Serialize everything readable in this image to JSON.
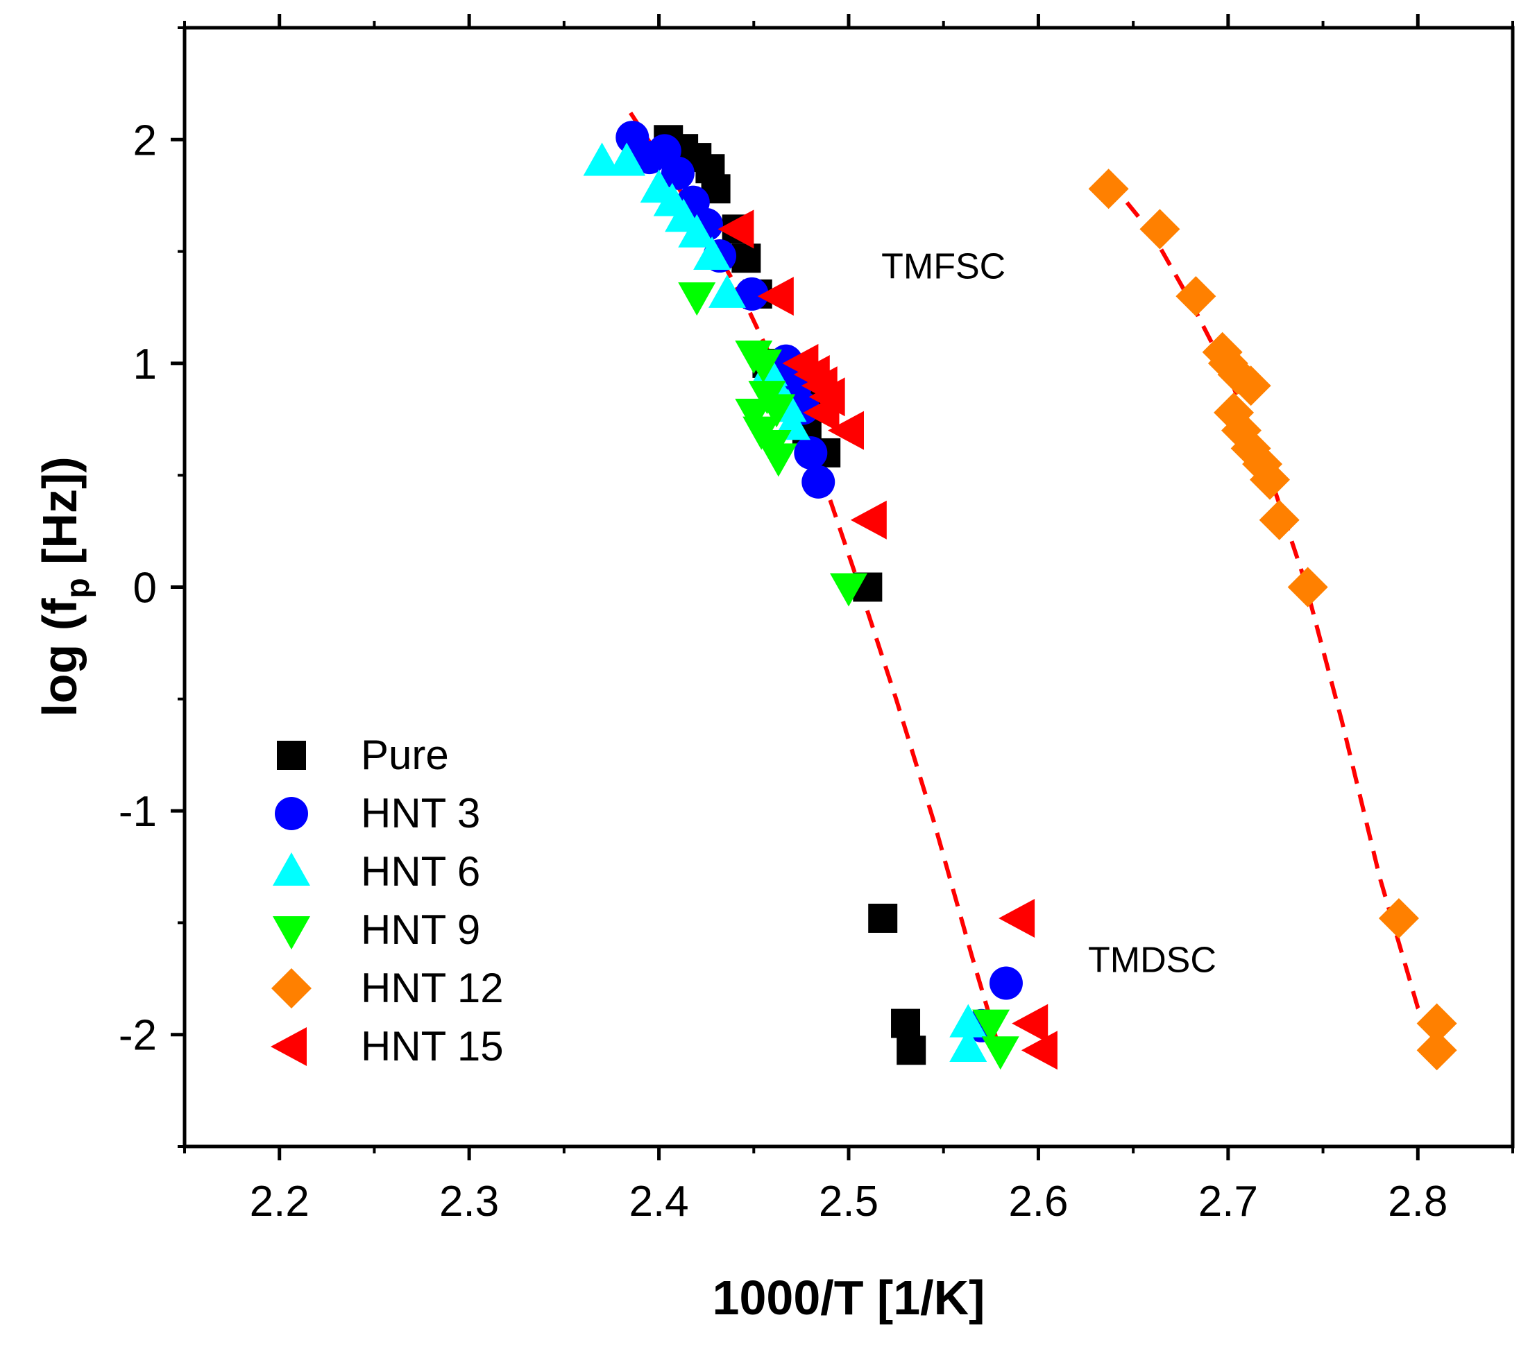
{
  "chart_data": {
    "type": "scatter",
    "title": "",
    "xlabel": "1000/T [1/K]",
    "ylabel_parts": {
      "prefix": "log (f",
      "subscript": "p",
      "suffix": " [Hz])"
    },
    "xlim": [
      2.15,
      2.85
    ],
    "ylim": [
      -2.5,
      2.5
    ],
    "xticks": [
      2.2,
      2.3,
      2.4,
      2.5,
      2.6,
      2.7,
      2.8
    ],
    "xtick_labels": [
      "2.2",
      "2.3",
      "2.4",
      "2.5",
      "2.6",
      "2.7",
      "2.8"
    ],
    "yticks": [
      -2,
      -1,
      0,
      1,
      2
    ],
    "ytick_labels": [
      "-2",
      "-1",
      "0",
      "1",
      "2"
    ],
    "grid": false,
    "legend_position": "bottom-left",
    "annotations": [
      {
        "text": "TMFSC",
        "x": 2.55,
        "y": 1.38
      },
      {
        "text": "TMDSC",
        "x": 2.66,
        "y": -1.72
      }
    ],
    "series": [
      {
        "name": "Pure",
        "marker": "square",
        "color": "#000000",
        "x": [
          2.405,
          2.413,
          2.42,
          2.427,
          2.43,
          2.441,
          2.446,
          2.452,
          2.457,
          2.463,
          2.473,
          2.48,
          2.485,
          2.478,
          2.488,
          2.51,
          2.518,
          2.53,
          2.533
        ],
        "y": [
          2.0,
          1.96,
          1.92,
          1.87,
          1.78,
          1.6,
          1.47,
          1.31,
          1.0,
          0.96,
          0.94,
          0.9,
          0.8,
          0.7,
          0.6,
          0.0,
          -1.48,
          -1.95,
          -2.07
        ]
      },
      {
        "name": "HNT 3",
        "marker": "circle",
        "color": "#0000ff",
        "x": [
          2.386,
          2.395,
          2.403,
          2.41,
          2.418,
          2.425,
          2.432,
          2.449,
          2.467,
          2.472,
          2.476,
          2.48,
          2.484,
          2.583,
          2.57
        ],
        "y": [
          2.01,
          1.92,
          1.95,
          1.85,
          1.72,
          1.62,
          1.48,
          1.31,
          1.01,
          0.9,
          0.8,
          0.6,
          0.47,
          -1.77,
          -1.96
        ]
      },
      {
        "name": "HNT 6",
        "marker": "triangle-up",
        "color": "#00ffff",
        "x": [
          2.37,
          2.383,
          2.4,
          2.407,
          2.413,
          2.42,
          2.428,
          2.436,
          2.458,
          2.462,
          2.468,
          2.47,
          2.563,
          2.563
        ],
        "y": [
          1.9,
          1.9,
          1.78,
          1.72,
          1.65,
          1.58,
          1.48,
          1.31,
          0.96,
          0.88,
          0.8,
          0.72,
          -1.95,
          -2.06
        ]
      },
      {
        "name": "HNT 9",
        "marker": "triangle-down",
        "color": "#00ff00",
        "x": [
          2.42,
          2.45,
          2.455,
          2.457,
          2.462,
          2.45,
          2.454,
          2.46,
          2.463,
          2.5,
          2.575,
          2.58
        ],
        "y": [
          1.3,
          1.04,
          1.0,
          0.86,
          0.8,
          0.78,
          0.7,
          0.64,
          0.58,
          0.0,
          -1.95,
          -2.07
        ]
      },
      {
        "name": "HNT 12",
        "marker": "diamond",
        "color": "#ff8000",
        "x": [
          2.637,
          2.664,
          2.683,
          2.697,
          2.7,
          2.705,
          2.712,
          2.703,
          2.707,
          2.712,
          2.718,
          2.722,
          2.727,
          2.742,
          2.79,
          2.81,
          2.81
        ],
        "y": [
          1.78,
          1.6,
          1.3,
          1.05,
          1.0,
          0.95,
          0.9,
          0.78,
          0.7,
          0.62,
          0.55,
          0.48,
          0.3,
          0.0,
          -1.48,
          -1.95,
          -2.07
        ]
      },
      {
        "name": "HNT 15",
        "marker": "triangle-left",
        "color": "#ff0000",
        "x": [
          2.442,
          2.463,
          2.476,
          2.482,
          2.486,
          2.49,
          2.487,
          2.5,
          2.512,
          2.59,
          2.597,
          2.602
        ],
        "y": [
          1.6,
          1.3,
          1.0,
          0.95,
          0.9,
          0.85,
          0.78,
          0.7,
          0.3,
          -1.48,
          -1.95,
          -2.07
        ]
      }
    ],
    "fit_lines": [
      {
        "name": "TMFSC fit",
        "style": "dashed",
        "color": "#ff0000",
        "x": [
          2.385,
          2.405,
          2.425,
          2.445,
          2.465,
          2.485,
          2.505,
          2.525,
          2.545,
          2.565,
          2.58
        ],
        "y": [
          2.12,
          1.86,
          1.58,
          1.28,
          0.92,
          0.52,
          0.02,
          -0.5,
          -1.05,
          -1.65,
          -2.08
        ]
      },
      {
        "name": "TMDSC fit",
        "style": "dashed",
        "color": "#ff0000",
        "x": [
          2.637,
          2.66,
          2.68,
          2.7,
          2.72,
          2.74,
          2.76,
          2.78,
          2.8,
          2.81
        ],
        "y": [
          1.82,
          1.58,
          1.28,
          0.95,
          0.55,
          0.04,
          -0.6,
          -1.3,
          -1.88,
          -2.0
        ]
      }
    ]
  }
}
